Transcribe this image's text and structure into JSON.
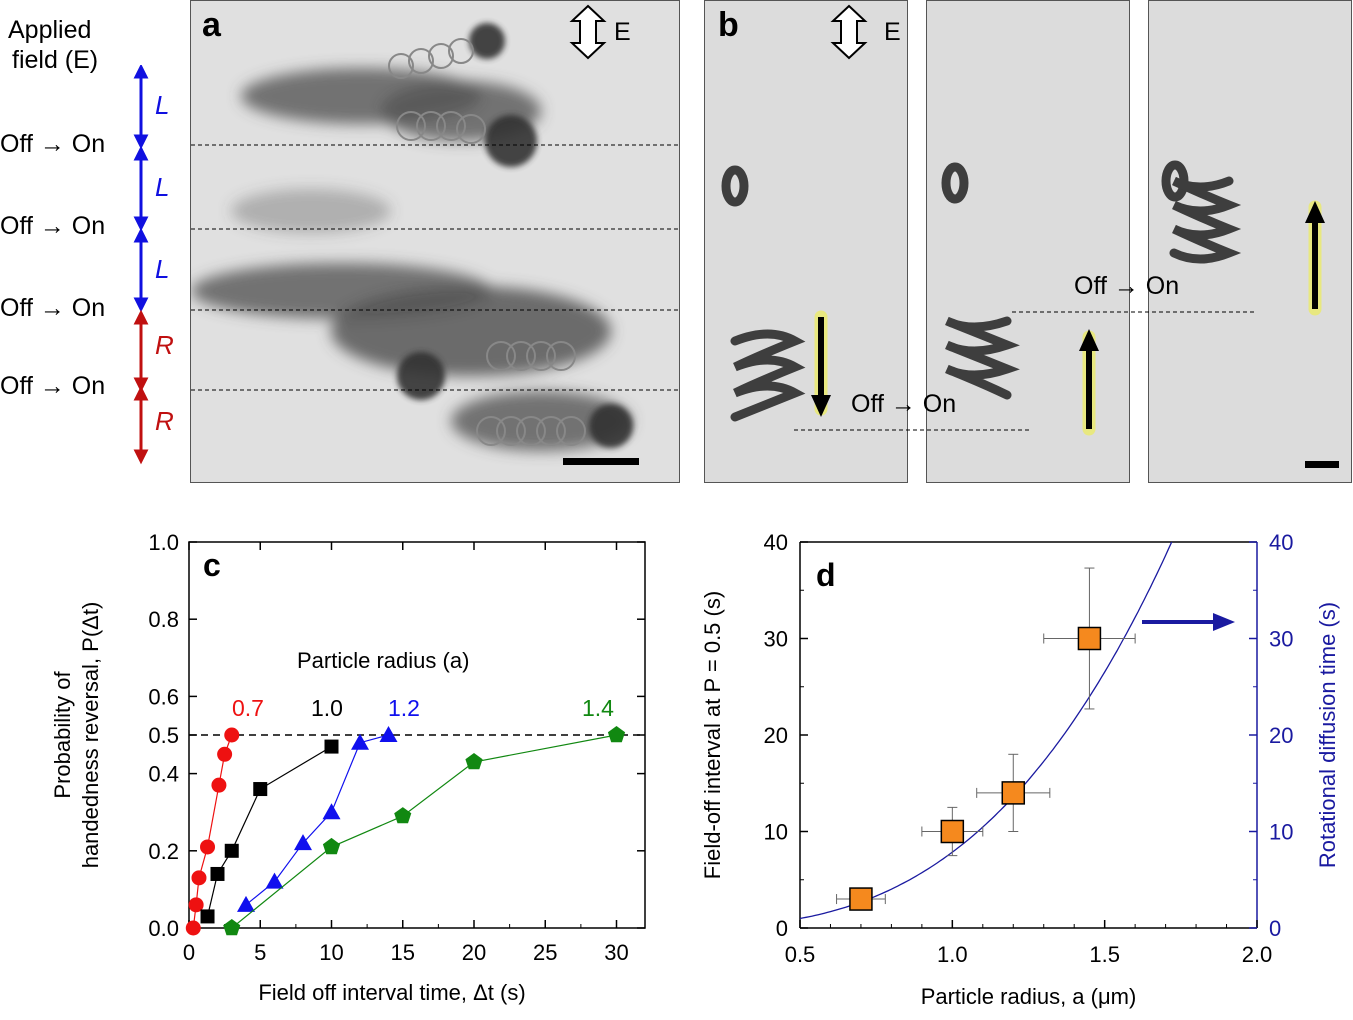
{
  "panel_a": {
    "letter": "a",
    "field_label_line1": "Applied",
    "field_label_line2": "field (E)",
    "field_arrow_label": "E",
    "switch_label": "Off → On",
    "handedness": [
      "L",
      "L",
      "L",
      "R",
      "R"
    ],
    "colors": {
      "left": "#1010e0",
      "right": "#c01010"
    }
  },
  "panel_b": {
    "letter": "b",
    "field_arrow_label": "E",
    "switch_label_1": "Off → On",
    "switch_label_2": "Off → On"
  },
  "chart_data": [
    {
      "type": "line",
      "panel": "c",
      "xlabel": "Field off interval time, Δt (s)",
      "ylabel_line1": "Probability of",
      "ylabel_line2": "handedness reversal, P(Δt)",
      "xlim": [
        0,
        32
      ],
      "ylim": [
        0,
        1.0
      ],
      "xticks": [
        0,
        5,
        10,
        15,
        20,
        25,
        30
      ],
      "yticks": [
        0.0,
        0.2,
        0.4,
        0.5,
        0.6,
        0.8,
        1.0
      ],
      "ytick_labels": [
        "0.0",
        "0.2",
        "0.4",
        "0.5",
        "0.6",
        "0.8",
        "1.0"
      ],
      "reference_line": 0.5,
      "legend_title": "Particle radius (a)",
      "series": [
        {
          "name": "0.7",
          "color": "#ee1111",
          "marker": "circle",
          "x": [
            0.3,
            0.5,
            0.7,
            1.3,
            2.1,
            2.5,
            3.0
          ],
          "y": [
            0.0,
            0.06,
            0.13,
            0.21,
            0.37,
            0.45,
            0.5
          ]
        },
        {
          "name": "1.0",
          "color": "#000000",
          "marker": "square",
          "x": [
            1.3,
            2.0,
            3.0,
            5.0,
            10.0
          ],
          "y": [
            0.03,
            0.14,
            0.2,
            0.36,
            0.47
          ]
        },
        {
          "name": "1.2",
          "color": "#1010ee",
          "marker": "triangle",
          "x": [
            4.0,
            6.0,
            8.0,
            10.0,
            12.0,
            14.0
          ],
          "y": [
            0.06,
            0.12,
            0.22,
            0.3,
            0.48,
            0.5
          ]
        },
        {
          "name": "1.4",
          "color": "#118811",
          "marker": "pentagon",
          "x": [
            3.0,
            10.0,
            15.0,
            20.0,
            30.0
          ],
          "y": [
            0.0,
            0.21,
            0.29,
            0.43,
            0.5
          ]
        }
      ]
    },
    {
      "type": "scatter",
      "panel": "d",
      "xlabel": "Particle radius, a (μm)",
      "ylabel_left": "Field-off interval at P = 0.5 (s)",
      "ylabel_right": "Rotational diffusion time (s)",
      "xlim": [
        0.5,
        2.0
      ],
      "ylim": [
        0,
        40
      ],
      "xticks": [
        0.5,
        1.0,
        1.5,
        2.0
      ],
      "xtick_labels": [
        "0.5",
        "1.0",
        "1.5",
        "2.0"
      ],
      "yticks": [
        0,
        10,
        20,
        30,
        40
      ],
      "points": [
        {
          "x": 0.7,
          "y": 3,
          "xerr": 0.08,
          "yerr": 1
        },
        {
          "x": 1.0,
          "y": 10,
          "xerr": 0.1,
          "yerr": 2.5
        },
        {
          "x": 1.2,
          "y": 14,
          "xerr": 0.12,
          "yerr": 4
        },
        {
          "x": 1.45,
          "y": 30,
          "xerr": 0.15,
          "yerr": 7.3
        }
      ],
      "fit_curve": {
        "color": "#1a1aa0",
        "form": "y = 7.86 * x^3"
      },
      "marker_color": "#f5891e",
      "axis_right_color": "#1a1aa0"
    }
  ]
}
